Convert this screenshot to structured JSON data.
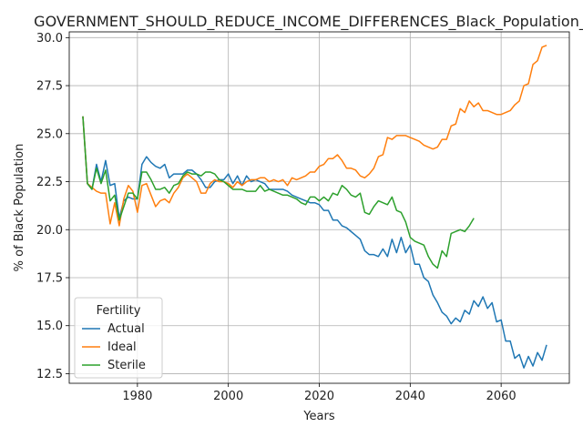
{
  "chart_data": {
    "type": "line",
    "title": "GOVERNMENT_SHOULD_REDUCE_INCOME_DIFFERENCES_Black_Population_Sc",
    "xlabel": "Years",
    "ylabel": "% of Black Population",
    "xlim": [
      1965,
      2075
    ],
    "ylim": [
      12.0,
      30.3
    ],
    "x_ticks": [
      1980,
      2000,
      2020,
      2040,
      2060
    ],
    "x_tick_labels": [
      "1980",
      "2000",
      "2020",
      "2040",
      "2060"
    ],
    "y_ticks": [
      12.5,
      15.0,
      17.5,
      20.0,
      22.5,
      25.0,
      27.5,
      30.0
    ],
    "y_tick_labels": [
      "12.5",
      "15.0",
      "17.5",
      "20.0",
      "22.5",
      "25.0",
      "27.5",
      "30.0"
    ],
    "grid": true,
    "legend": {
      "title": "Fertility",
      "placement": "lower-left"
    },
    "series": [
      {
        "name": "Actual",
        "color": "#1f77b4",
        "x": [
          1968,
          1969,
          1970,
          1971,
          1972,
          1973,
          1974,
          1975,
          1976,
          1977,
          1978,
          1979,
          1980,
          1981,
          1982,
          1983,
          1984,
          1985,
          1986,
          1987,
          1988,
          1989,
          1990,
          1991,
          1992,
          1993,
          1994,
          1995,
          1996,
          1997,
          1998,
          1999,
          2000,
          2001,
          2002,
          2003,
          2004,
          2005,
          2006,
          2007,
          2008,
          2009,
          2010,
          2011,
          2012,
          2013,
          2014,
          2015,
          2016,
          2017,
          2018,
          2019,
          2020,
          2021,
          2022,
          2023,
          2024,
          2025,
          2026,
          2027,
          2028,
          2029,
          2030,
          2031,
          2032,
          2033,
          2034,
          2035,
          2036,
          2037,
          2038,
          2039,
          2040,
          2041,
          2042,
          2043,
          2044,
          2045,
          2046,
          2047,
          2048,
          2049,
          2050,
          2051,
          2052,
          2053,
          2054,
          2055,
          2056,
          2057,
          2058,
          2059,
          2060,
          2061,
          2062,
          2063,
          2064,
          2065,
          2066,
          2067,
          2068,
          2069,
          2070
        ],
        "values": [
          25.9,
          22.4,
          22.1,
          23.4,
          22.5,
          23.6,
          22.3,
          22.4,
          20.6,
          21.5,
          21.7,
          21.6,
          21.6,
          23.4,
          23.8,
          23.5,
          23.3,
          23.2,
          23.4,
          22.7,
          22.9,
          22.9,
          22.9,
          23.1,
          23.1,
          22.9,
          22.6,
          22.2,
          22.2,
          22.5,
          22.6,
          22.6,
          22.9,
          22.4,
          22.8,
          22.3,
          22.8,
          22.5,
          22.6,
          22.5,
          22.4,
          22.1,
          22.1,
          22.1,
          22.1,
          22.0,
          21.8,
          21.7,
          21.6,
          21.5,
          21.4,
          21.4,
          21.3,
          21.0,
          21.0,
          20.5,
          20.5,
          20.2,
          20.1,
          19.9,
          19.7,
          19.5,
          18.9,
          18.7,
          18.7,
          18.6,
          19.0,
          18.6,
          19.5,
          18.8,
          19.6,
          18.8,
          19.2,
          18.2,
          18.2,
          17.5,
          17.3,
          16.6,
          16.2,
          15.7,
          15.5,
          15.1,
          15.4,
          15.2,
          15.8,
          15.6,
          16.3,
          16.0,
          16.5,
          15.9,
          16.2,
          15.2,
          15.3,
          14.2,
          14.2,
          13.3,
          13.5,
          12.8,
          13.4,
          12.9,
          13.6,
          13.2,
          14.0
        ]
      },
      {
        "name": "Ideal",
        "color": "#ff7f0e",
        "x": [
          1968,
          1969,
          1970,
          1971,
          1972,
          1973,
          1974,
          1975,
          1976,
          1977,
          1978,
          1979,
          1980,
          1981,
          1982,
          1983,
          1984,
          1985,
          1986,
          1987,
          1988,
          1989,
          1990,
          1991,
          1992,
          1993,
          1994,
          1995,
          1996,
          1997,
          1998,
          1999,
          2000,
          2001,
          2002,
          2003,
          2004,
          2005,
          2006,
          2007,
          2008,
          2009,
          2010,
          2011,
          2012,
          2013,
          2014,
          2015,
          2016,
          2017,
          2018,
          2019,
          2020,
          2021,
          2022,
          2023,
          2024,
          2025,
          2026,
          2027,
          2028,
          2029,
          2030,
          2031,
          2032,
          2033,
          2034,
          2035,
          2036,
          2037,
          2038,
          2039,
          2040,
          2041,
          2042,
          2043,
          2044,
          2045,
          2046,
          2047,
          2048,
          2049,
          2050,
          2051,
          2052,
          2053,
          2054,
          2055,
          2056,
          2057,
          2058,
          2059,
          2060,
          2061,
          2062,
          2063,
          2064,
          2065,
          2066,
          2067,
          2068,
          2069,
          2070
        ],
        "values": [
          25.9,
          22.4,
          22.2,
          22.0,
          21.9,
          21.9,
          20.3,
          21.4,
          20.2,
          21.6,
          22.3,
          22.0,
          20.9,
          22.3,
          22.4,
          21.8,
          21.2,
          21.5,
          21.6,
          21.4,
          21.9,
          22.2,
          22.7,
          22.9,
          22.7,
          22.5,
          21.9,
          21.9,
          22.4,
          22.6,
          22.5,
          22.5,
          22.4,
          22.2,
          22.5,
          22.3,
          22.5,
          22.6,
          22.6,
          22.7,
          22.7,
          22.5,
          22.6,
          22.5,
          22.6,
          22.3,
          22.7,
          22.6,
          22.7,
          22.8,
          23.0,
          23.0,
          23.3,
          23.4,
          23.7,
          23.7,
          23.9,
          23.6,
          23.2,
          23.2,
          23.1,
          22.8,
          22.7,
          22.9,
          23.2,
          23.8,
          23.9,
          24.8,
          24.7,
          24.9,
          24.9,
          24.9,
          24.8,
          24.7,
          24.6,
          24.4,
          24.3,
          24.2,
          24.3,
          24.7,
          24.7,
          25.4,
          25.5,
          26.3,
          26.1,
          26.7,
          26.4,
          26.6,
          26.2,
          26.2,
          26.1,
          26.0,
          26.0,
          26.1,
          26.2,
          26.5,
          26.7,
          27.5,
          27.6,
          28.6,
          28.8,
          29.5,
          29.6
        ]
      },
      {
        "name": "Sterile",
        "color": "#2ca02c",
        "x": [
          1968,
          1969,
          1970,
          1971,
          1972,
          1973,
          1974,
          1975,
          1976,
          1977,
          1978,
          1979,
          1980,
          1981,
          1982,
          1983,
          1984,
          1985,
          1986,
          1987,
          1988,
          1989,
          1990,
          1991,
          1992,
          1993,
          1994,
          1995,
          1996,
          1997,
          1998,
          1999,
          2000,
          2001,
          2002,
          2003,
          2004,
          2005,
          2006,
          2007,
          2008,
          2009,
          2010,
          2011,
          2012,
          2013,
          2014,
          2015,
          2016,
          2017,
          2018,
          2019,
          2020,
          2021,
          2022,
          2023,
          2024,
          2025,
          2026,
          2027,
          2028,
          2029,
          2030,
          2031,
          2032,
          2033,
          2034,
          2035,
          2036,
          2037,
          2038,
          2039,
          2040,
          2041,
          2042,
          2043,
          2044,
          2045,
          2046,
          2047,
          2048,
          2049,
          2050,
          2051,
          2052,
          2053,
          2054
        ],
        "values": [
          25.9,
          22.4,
          22.1,
          23.2,
          22.4,
          23.1,
          21.5,
          21.8,
          20.5,
          21.2,
          21.9,
          21.9,
          21.6,
          23.0,
          23.0,
          22.6,
          22.1,
          22.1,
          22.2,
          21.9,
          22.3,
          22.4,
          22.8,
          23.0,
          22.9,
          22.9,
          22.8,
          23.0,
          23.0,
          22.9,
          22.6,
          22.5,
          22.3,
          22.1,
          22.1,
          22.1,
          22.0,
          22.0,
          22.0,
          22.3,
          22.0,
          22.1,
          22.0,
          21.9,
          21.8,
          21.8,
          21.7,
          21.6,
          21.4,
          21.3,
          21.7,
          21.7,
          21.5,
          21.7,
          21.5,
          21.9,
          21.8,
          22.3,
          22.1,
          21.8,
          21.7,
          21.9,
          20.9,
          20.8,
          21.2,
          21.5,
          21.4,
          21.3,
          21.7,
          21.0,
          20.9,
          20.4,
          19.6,
          19.4,
          19.3,
          19.2,
          18.6,
          18.2,
          18.0,
          18.9,
          18.6,
          19.8,
          19.9,
          20.0,
          19.9,
          20.2,
          20.6
        ]
      }
    ]
  }
}
